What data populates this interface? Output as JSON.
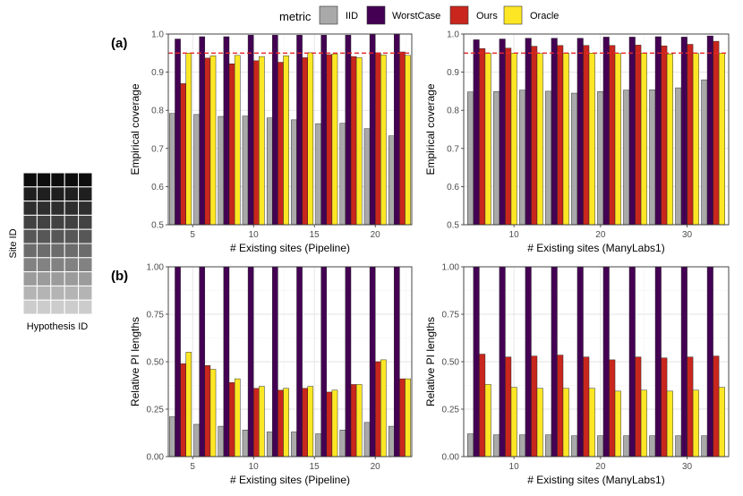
{
  "legend": {
    "title": "metric",
    "items": [
      {
        "label": "IID",
        "color": "#a9a9a9"
      },
      {
        "label": "WorstCase",
        "color": "#440154"
      },
      {
        "label": "Ours",
        "color": "#c9261d"
      },
      {
        "label": "Oracle",
        "color": "#fde725"
      }
    ]
  },
  "panel_labels": {
    "a": "(a)",
    "b": "(b)"
  },
  "heatmap": {
    "ylabel": "Site ID",
    "xlabel": "Hypothesis ID",
    "rows": 10,
    "cols": 5,
    "row_shades": [
      "#0d0d0d",
      "#1f1f1f",
      "#2e2e2e",
      "#424242",
      "#575757",
      "#6c6c6c",
      "#828282",
      "#9b9b9b",
      "#b4b4b4",
      "#cccccc"
    ]
  },
  "chart_data": [
    {
      "type": "bar",
      "id": "a-pipeline",
      "xlabel": "# Existing sites (Pipeline)",
      "ylabel": "Empirical coverage",
      "x": [
        4,
        6,
        8,
        10,
        12,
        14,
        16,
        18,
        20,
        22
      ],
      "xticks": [
        5,
        10,
        15,
        20
      ],
      "xlim": [
        3,
        23
      ],
      "ylim": [
        0.5,
        1.0
      ],
      "yticks": [
        "0.5",
        "0.6",
        "0.7",
        "0.8",
        "0.9",
        "1.0"
      ],
      "reference_line": {
        "y": 0.95,
        "color": "#e8262b",
        "style": "dashed"
      },
      "series": [
        {
          "name": "IID",
          "values": [
            0.792,
            0.789,
            0.784,
            0.785,
            0.78,
            0.775,
            0.765,
            0.766,
            0.752,
            0.733
          ]
        },
        {
          "name": "WorstCase",
          "values": [
            0.987,
            0.993,
            0.993,
            0.997,
            0.997,
            0.997,
            0.997,
            0.997,
            0.999,
            1.0
          ]
        },
        {
          "name": "Ours",
          "values": [
            0.87,
            0.937,
            0.922,
            0.93,
            0.926,
            0.938,
            0.946,
            0.941,
            0.951,
            0.953
          ]
        },
        {
          "name": "Oracle",
          "values": [
            0.95,
            0.943,
            0.944,
            0.941,
            0.943,
            0.951,
            0.948,
            0.938,
            0.945,
            0.944
          ]
        }
      ]
    },
    {
      "type": "bar",
      "id": "a-manylabs",
      "xlabel": "# Existing sites (ManyLabs1)",
      "ylabel": "Empirical coverage",
      "x": [
        6,
        9,
        12,
        15,
        18,
        21,
        24,
        27,
        30,
        33
      ],
      "xticks": [
        10,
        20,
        30
      ],
      "xlim": [
        4.2,
        34.8
      ],
      "ylim": [
        0.5,
        1.0
      ],
      "yticks": [
        "0.5",
        "0.6",
        "0.7",
        "0.8",
        "0.9",
        "1.0"
      ],
      "reference_line": {
        "y": 0.95,
        "color": "#e8262b",
        "style": "dashed"
      },
      "series": [
        {
          "name": "IID",
          "values": [
            0.848,
            0.849,
            0.853,
            0.85,
            0.845,
            0.849,
            0.853,
            0.854,
            0.859,
            0.88
          ]
        },
        {
          "name": "WorstCase",
          "values": [
            0.985,
            0.987,
            0.989,
            0.989,
            0.989,
            0.992,
            0.992,
            0.993,
            0.992,
            0.995
          ]
        },
        {
          "name": "Ours",
          "values": [
            0.962,
            0.963,
            0.968,
            0.97,
            0.97,
            0.97,
            0.971,
            0.969,
            0.973,
            0.981
          ]
        },
        {
          "name": "Oracle",
          "values": [
            0.95,
            0.95,
            0.949,
            0.95,
            0.95,
            0.949,
            0.95,
            0.948,
            0.949,
            0.95
          ]
        }
      ]
    },
    {
      "type": "bar",
      "id": "b-pipeline",
      "xlabel": "# Existing sites (Pipeline)",
      "ylabel": "Relative PI lengths",
      "x": [
        4,
        6,
        8,
        10,
        12,
        14,
        16,
        18,
        20,
        22
      ],
      "xticks": [
        5,
        10,
        15,
        20
      ],
      "xlim": [
        3,
        23
      ],
      "ylim": [
        0.0,
        1.0
      ],
      "yticks": [
        "0.00",
        "0.25",
        "0.50",
        "0.75",
        "1.00"
      ],
      "series": [
        {
          "name": "IID",
          "values": [
            0.21,
            0.17,
            0.16,
            0.14,
            0.13,
            0.13,
            0.12,
            0.14,
            0.18,
            0.16
          ]
        },
        {
          "name": "WorstCase",
          "values": [
            1.0,
            1.0,
            1.0,
            1.0,
            1.0,
            1.0,
            1.0,
            1.0,
            1.0,
            1.0
          ]
        },
        {
          "name": "Ours",
          "values": [
            0.49,
            0.48,
            0.39,
            0.36,
            0.35,
            0.36,
            0.34,
            0.38,
            0.5,
            0.41
          ]
        },
        {
          "name": "Oracle",
          "values": [
            0.55,
            0.46,
            0.41,
            0.37,
            0.36,
            0.37,
            0.35,
            0.38,
            0.51,
            0.41
          ]
        }
      ]
    },
    {
      "type": "bar",
      "id": "b-manylabs",
      "xlabel": "# Existing sites (ManyLabs1)",
      "ylabel": "Relative PI lengths",
      "x": [
        6,
        9,
        12,
        15,
        18,
        21,
        24,
        27,
        30,
        33
      ],
      "xticks": [
        10,
        20,
        30
      ],
      "xlim": [
        4.2,
        34.8
      ],
      "ylim": [
        0.0,
        1.0
      ],
      "yticks": [
        "0.00",
        "0.25",
        "0.50",
        "0.75",
        "1.00"
      ],
      "series": [
        {
          "name": "IID",
          "values": [
            0.12,
            0.115,
            0.115,
            0.115,
            0.11,
            0.11,
            0.11,
            0.11,
            0.11,
            0.11
          ]
        },
        {
          "name": "WorstCase",
          "values": [
            1.0,
            1.0,
            1.0,
            1.0,
            1.0,
            1.0,
            1.0,
            1.0,
            1.0,
            1.0
          ]
        },
        {
          "name": "Ours",
          "values": [
            0.54,
            0.525,
            0.53,
            0.535,
            0.525,
            0.51,
            0.525,
            0.52,
            0.525,
            0.53
          ]
        },
        {
          "name": "Oracle",
          "values": [
            0.38,
            0.365,
            0.36,
            0.36,
            0.36,
            0.345,
            0.35,
            0.345,
            0.35,
            0.365
          ]
        }
      ]
    }
  ]
}
